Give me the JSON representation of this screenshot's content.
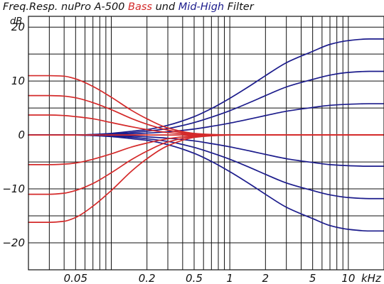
{
  "chart_data": {
    "type": "line",
    "title_parts": [
      {
        "text": "Freq.Resp. nuPro A-500 ",
        "color": "#111111"
      },
      {
        "text": "Bass",
        "color": "#d42a2a"
      },
      {
        "text": " und ",
        "color": "#111111"
      },
      {
        "text": "Mid-High",
        "color": "#1c1c8c"
      },
      {
        "text": " Filter",
        "color": "#111111"
      }
    ],
    "ylabel": "dB",
    "xlabel": "kHz",
    "xscale": "log",
    "xlim": [
      0.02,
      20
    ],
    "ylim": [
      -25,
      22
    ],
    "grid": true,
    "y_ticks": [
      20,
      10,
      0,
      -10,
      -20
    ],
    "y_tick_labels": [
      "20",
      "10",
      "0",
      "−10",
      "−20"
    ],
    "x_ticks": [
      0.05,
      0.2,
      0.5,
      1,
      2,
      5,
      10
    ],
    "x_tick_labels": [
      "0.05",
      "0.2",
      "0.5",
      "1",
      "2",
      "5",
      "10"
    ],
    "colors": {
      "bass": "#d42a2a",
      "mid_high": "#1c1c8c"
    },
    "x": [
      0.02,
      0.03,
      0.04,
      0.05,
      0.07,
      0.1,
      0.15,
      0.2,
      0.3,
      0.5,
      0.7,
      1,
      1.5,
      2,
      3,
      5,
      7,
      10,
      15,
      20
    ],
    "series": [
      {
        "group": "bass",
        "values": [
          11,
          11,
          10.9,
          10.4,
          9,
          7,
          4.5,
          3,
          1.3,
          0.3,
          0.1,
          0,
          0,
          0,
          0,
          0,
          0,
          0,
          0,
          0
        ]
      },
      {
        "group": "bass",
        "values": [
          7.3,
          7.3,
          7.2,
          6.9,
          6,
          4.7,
          3,
          2,
          0.9,
          0.2,
          0.05,
          0,
          0,
          0,
          0,
          0,
          0,
          0,
          0,
          0
        ]
      },
      {
        "group": "bass",
        "values": [
          3.7,
          3.7,
          3.6,
          3.4,
          3,
          2.3,
          1.5,
          1,
          0.45,
          0.1,
          0.03,
          0,
          0,
          0,
          0,
          0,
          0,
          0,
          0,
          0
        ]
      },
      {
        "group": "bass",
        "values": [
          0,
          0,
          0,
          0,
          0,
          0,
          0,
          0,
          0,
          0,
          0,
          0,
          0,
          0,
          0,
          0,
          0,
          0,
          0,
          0
        ]
      },
      {
        "group": "bass",
        "values": [
          -5.5,
          -5.5,
          -5.4,
          -5.2,
          -4.5,
          -3.5,
          -2.2,
          -1.5,
          -0.7,
          -0.15,
          -0.05,
          0,
          0,
          0,
          0,
          0,
          0,
          0,
          0,
          0
        ]
      },
      {
        "group": "bass",
        "values": [
          -11,
          -11,
          -10.8,
          -10.3,
          -9,
          -7,
          -4.5,
          -3,
          -1.3,
          -0.3,
          -0.1,
          0,
          0,
          0,
          0,
          0,
          0,
          0,
          0,
          0
        ]
      },
      {
        "group": "bass",
        "values": [
          -16.2,
          -16.2,
          -16,
          -15.3,
          -13.2,
          -10.3,
          -6.6,
          -4.4,
          -2,
          -0.45,
          -0.15,
          0,
          0,
          0,
          0,
          0,
          0,
          0,
          0,
          0
        ]
      },
      {
        "group": "mid_high",
        "values": [
          0,
          0,
          0,
          0,
          0.1,
          0.3,
          0.7,
          1,
          1.8,
          3.4,
          4.9,
          6.8,
          9.2,
          11,
          13.4,
          15.5,
          16.8,
          17.5,
          17.8,
          17.8
        ]
      },
      {
        "group": "mid_high",
        "values": [
          0,
          0,
          0,
          0,
          0.07,
          0.2,
          0.45,
          0.7,
          1.2,
          2.3,
          3.3,
          4.5,
          6.1,
          7.3,
          8.9,
          10.3,
          11.1,
          11.6,
          11.8,
          11.8
        ]
      },
      {
        "group": "mid_high",
        "values": [
          0,
          0,
          0,
          0,
          0.03,
          0.1,
          0.22,
          0.35,
          0.6,
          1.1,
          1.6,
          2.2,
          3,
          3.6,
          4.4,
          5.1,
          5.5,
          5.7,
          5.8,
          5.8
        ]
      },
      {
        "group": "mid_high",
        "values": [
          0,
          0,
          0,
          0,
          -0.03,
          -0.1,
          -0.22,
          -0.35,
          -0.6,
          -1.1,
          -1.6,
          -2.2,
          -3,
          -3.6,
          -4.4,
          -5.1,
          -5.5,
          -5.7,
          -5.8,
          -5.8
        ]
      },
      {
        "group": "mid_high",
        "values": [
          0,
          0,
          0,
          0,
          -0.07,
          -0.2,
          -0.45,
          -0.7,
          -1.2,
          -2.3,
          -3.3,
          -4.5,
          -6.1,
          -7.3,
          -8.9,
          -10.3,
          -11.1,
          -11.6,
          -11.8,
          -11.8
        ]
      },
      {
        "group": "mid_high",
        "values": [
          0,
          0,
          0,
          0,
          -0.1,
          -0.3,
          -0.7,
          -1,
          -1.8,
          -3.4,
          -4.9,
          -6.8,
          -9.2,
          -11,
          -13.4,
          -15.5,
          -16.8,
          -17.5,
          -17.8,
          -17.8
        ]
      }
    ]
  }
}
